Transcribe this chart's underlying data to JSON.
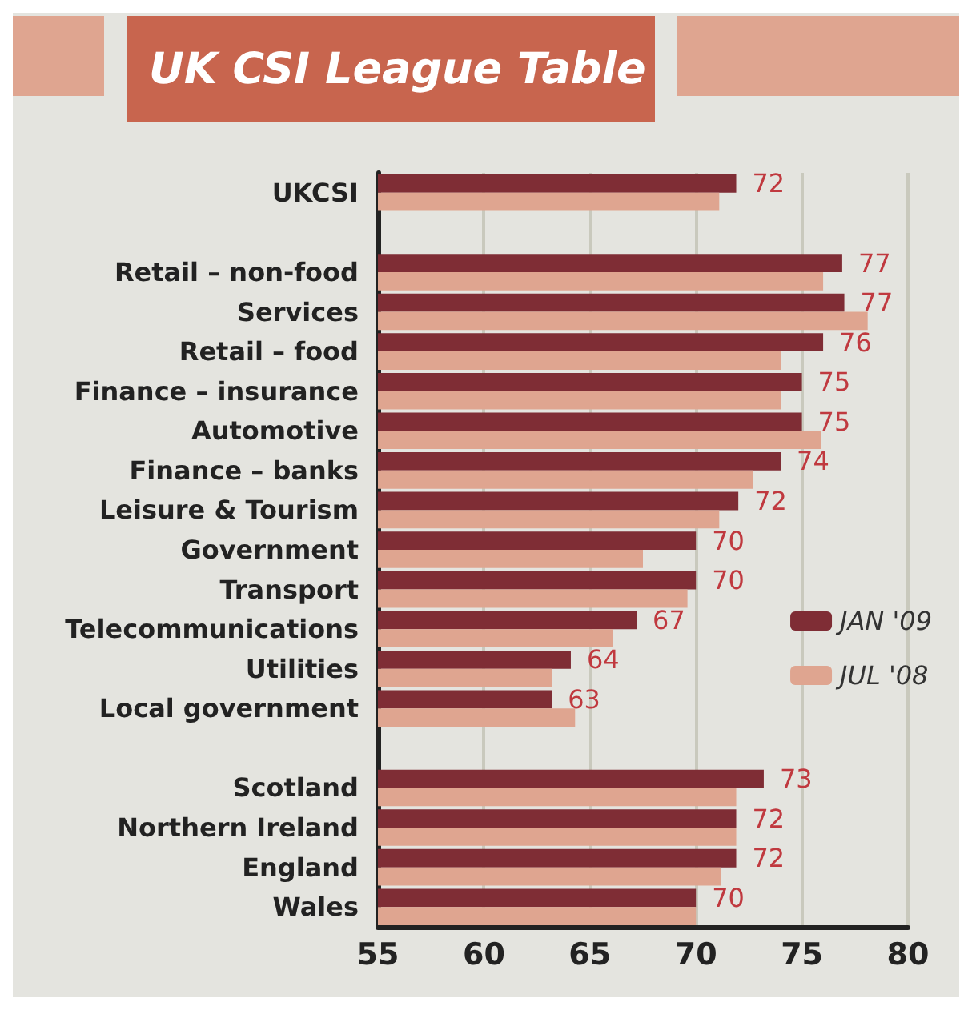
{
  "chart_data": {
    "type": "bar",
    "orientation": "horizontal",
    "title": "UK CSI League Table",
    "categories": [
      "UKCSI",
      null,
      "Retail – non-food",
      "Services",
      "Retail – food",
      "Finance – insurance",
      "Automotive",
      "Finance – banks",
      "Leisure & Tourism",
      "Government",
      "Transport",
      "Telecommunications",
      "Utilities",
      "Local government",
      null,
      "Scotland",
      "Northern Ireland",
      "England",
      "Wales"
    ],
    "series": [
      {
        "name": "JAN '09",
        "color": "#7f2d35",
        "values": [
          71.9,
          null,
          76.9,
          77.0,
          76.0,
          75.0,
          75.0,
          74.0,
          72.0,
          70.0,
          70.0,
          67.2,
          64.1,
          63.2,
          null,
          73.2,
          71.9,
          71.9,
          70.0
        ],
        "value_labels": [
          "72",
          null,
          "77",
          "77",
          "76",
          "75",
          "75",
          "74",
          "72",
          "70",
          "70",
          "67",
          "64",
          "63",
          null,
          "73",
          "72",
          "72",
          "70"
        ]
      },
      {
        "name": "JUL '08",
        "color": "#dfa590",
        "values": [
          71.1,
          null,
          76.0,
          78.1,
          74.0,
          74.0,
          75.9,
          72.7,
          71.1,
          67.5,
          69.6,
          66.1,
          63.2,
          64.3,
          null,
          71.9,
          71.9,
          71.2,
          70.0
        ]
      }
    ],
    "xlim": [
      55,
      80
    ],
    "xticks": [
      55,
      60,
      65,
      70,
      75,
      80
    ],
    "grid": "x",
    "legend": "bottom right"
  }
}
